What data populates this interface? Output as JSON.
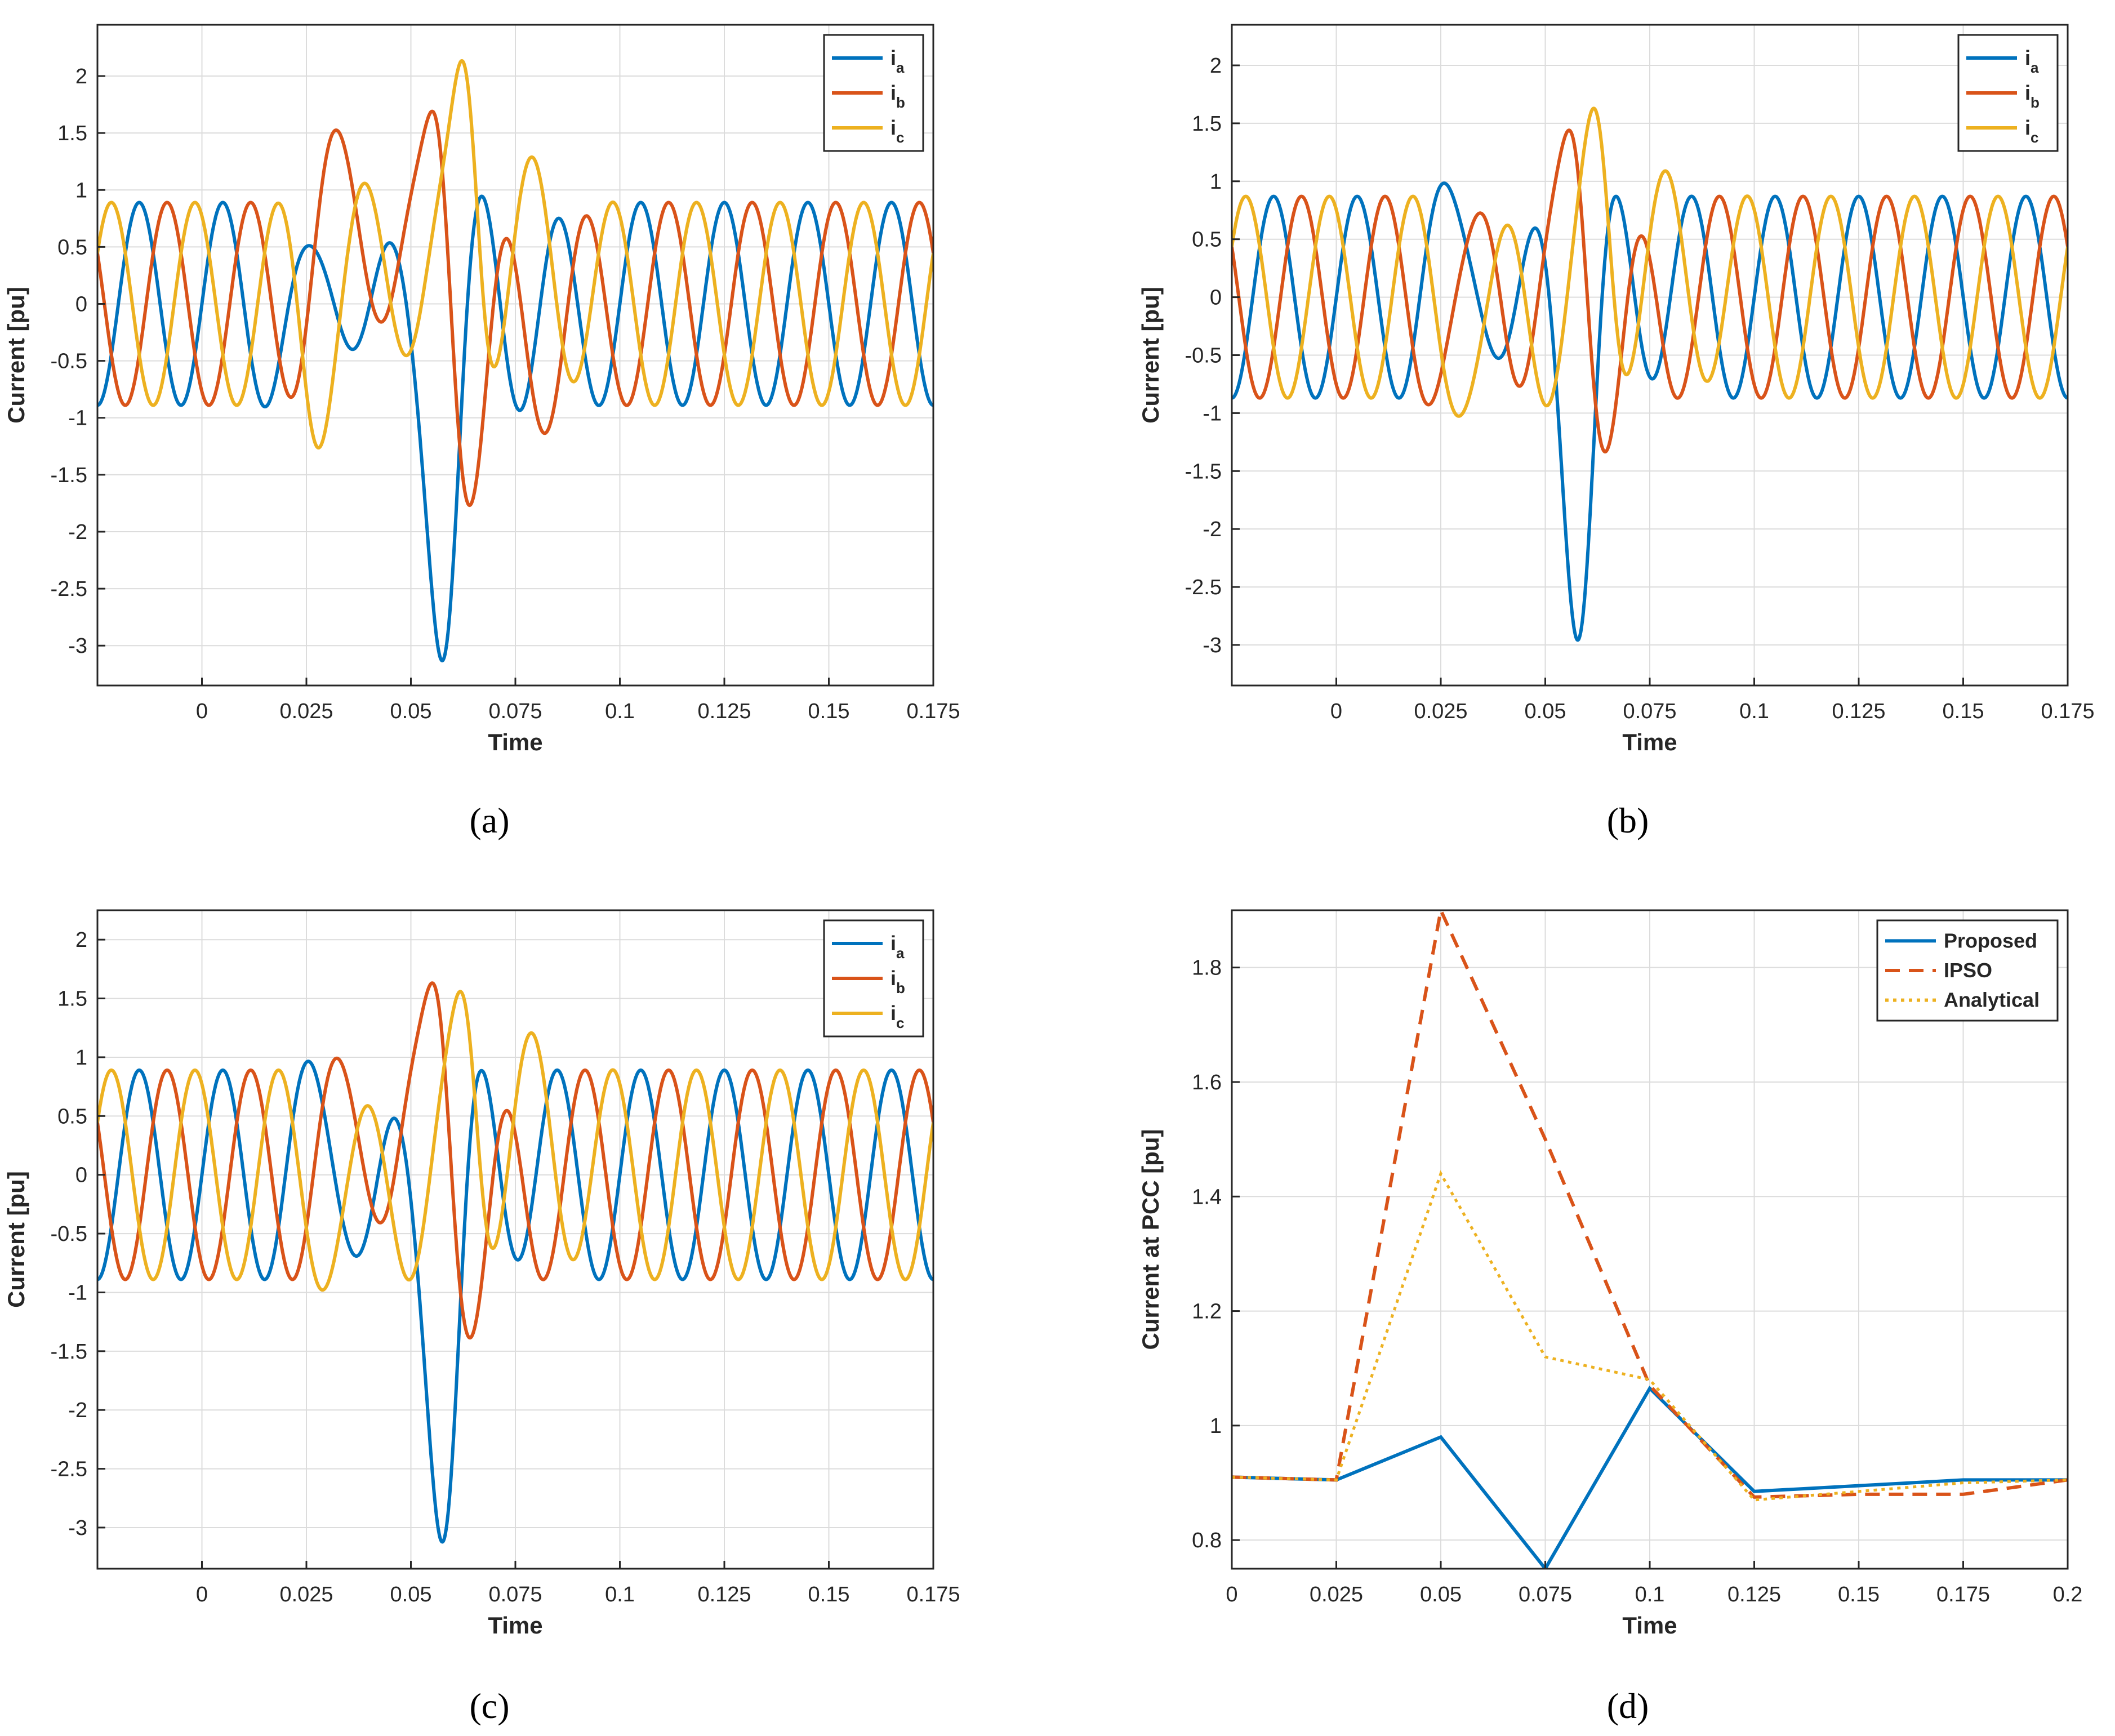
{
  "colors": {
    "ia": "#0072BD",
    "ib": "#D95319",
    "ic": "#EDB120",
    "grid": "#dcdcdc",
    "axis": "#262626"
  },
  "chart_data": [
    {
      "type": "line",
      "panel": "a",
      "caption": "(a)",
      "title": "",
      "xlabel": "Time",
      "ylabel": "Current [pu]",
      "xlim": [
        -0.025,
        0.175
      ],
      "ylim": [
        -3.35,
        2.45
      ],
      "xticks": [
        0,
        0.025,
        0.05,
        0.075,
        0.1,
        0.125,
        0.15,
        0.175
      ],
      "xtick_labels": [
        "0",
        "0.025",
        "0.05",
        "0.075",
        "0.1",
        "0.125",
        "0.15",
        "0.175"
      ],
      "yticks": [
        -3,
        -2.5,
        -2,
        -1.5,
        -1,
        -0.5,
        0,
        0.5,
        1,
        1.5,
        2
      ],
      "ytick_labels": [
        "-3",
        "-2.5",
        "-2",
        "-1.5",
        "-1",
        "-0.5",
        "0",
        "0.5",
        "1",
        "1.5",
        "2"
      ],
      "grid": true,
      "legend": "top-right",
      "series": [
        {
          "name": "ia",
          "label_main": "i",
          "label_sub": "a",
          "amp": 0.89,
          "phase": 0,
          "disturbances": [
            {
              "t": 0.026,
              "w": 0.004,
              "a": -0.6
            },
            {
              "t": 0.033,
              "w": 0.005,
              "a": 0.7
            },
            {
              "t": 0.044,
              "w": 0.005,
              "a": -0.4
            },
            {
              "t": 0.0585,
              "w": 0.0035,
              "a": -2.6
            },
            {
              "t": 0.07,
              "w": 0.004,
              "a": 0.5
            },
            {
              "t": 0.079,
              "w": 0.005,
              "a": -0.3
            }
          ]
        },
        {
          "name": "ib",
          "label_main": "i",
          "label_sub": "b",
          "amp": 0.89,
          "phase": -2.0944,
          "disturbances": [
            {
              "t": 0.029,
              "w": 0.004,
              "a": 0.4
            },
            {
              "t": 0.039,
              "w": 0.005,
              "a": 0.9
            },
            {
              "t": 0.057,
              "w": 0.003,
              "a": 1.6
            },
            {
              "t": 0.0655,
              "w": 0.004,
              "a": -1.3
            },
            {
              "t": 0.085,
              "w": 0.005,
              "a": -0.3
            }
          ]
        },
        {
          "name": "ic",
          "label_main": "i",
          "label_sub": "c",
          "amp": 0.89,
          "phase": 2.0944,
          "disturbances": [
            {
              "t": 0.027,
              "w": 0.003,
              "a": -0.4
            },
            {
              "t": 0.046,
              "w": 0.005,
              "a": 0.5
            },
            {
              "t": 0.0635,
              "w": 0.003,
              "a": 2.0
            },
            {
              "t": 0.082,
              "w": 0.005,
              "a": 0.5
            }
          ]
        }
      ]
    },
    {
      "type": "line",
      "panel": "b",
      "caption": "(b)",
      "title": "",
      "xlabel": "Time",
      "ylabel": "Current [pu]",
      "xlim": [
        -0.025,
        0.175
      ],
      "ylim": [
        -3.35,
        2.35
      ],
      "xticks": [
        0,
        0.025,
        0.05,
        0.075,
        0.1,
        0.125,
        0.15,
        0.175
      ],
      "xtick_labels": [
        "0",
        "0.025",
        "0.05",
        "0.075",
        "0.1",
        "0.125",
        "0.15",
        "0.175"
      ],
      "yticks": [
        -3,
        -2.5,
        -2,
        -1.5,
        -1,
        -0.5,
        0,
        0.5,
        1,
        1.5,
        2
      ],
      "ytick_labels": [
        "-3",
        "-2.5",
        "-2",
        "-1.5",
        "-1",
        "-0.5",
        "0",
        "0.5",
        "1",
        "1.5",
        "2"
      ],
      "grid": true,
      "legend": "top-right",
      "series": [
        {
          "name": "ia",
          "label_main": "i",
          "label_sub": "a",
          "amp": 0.87,
          "phase": 0,
          "disturbances": [
            {
              "t": 0.0335,
              "w": 0.004,
              "a": 0.9
            },
            {
              "t": 0.0425,
              "w": 0.004,
              "a": -0.9
            },
            {
              "t": 0.051,
              "w": 0.004,
              "a": 0.6
            },
            {
              "t": 0.0585,
              "w": 0.0035,
              "a": -2.6
            },
            {
              "t": 0.07,
              "w": 0.004,
              "a": 0.4
            }
          ]
        },
        {
          "name": "ib",
          "label_main": "i",
          "label_sub": "b",
          "amp": 0.87,
          "phase": -2.0944,
          "disturbances": [
            {
              "t": 0.0305,
              "w": 0.004,
              "a": -0.6
            },
            {
              "t": 0.038,
              "w": 0.004,
              "a": 0.8
            },
            {
              "t": 0.047,
              "w": 0.004,
              "a": -0.5
            },
            {
              "t": 0.0575,
              "w": 0.003,
              "a": 1.5
            },
            {
              "t": 0.0665,
              "w": 0.004,
              "a": -1.0
            }
          ]
        },
        {
          "name": "ic",
          "label_main": "i",
          "label_sub": "c",
          "amp": 0.87,
          "phase": 2.0944,
          "disturbances": [
            {
              "t": 0.036,
              "w": 0.004,
              "a": -0.8
            },
            {
              "t": 0.0445,
              "w": 0.004,
              "a": 0.6
            },
            {
              "t": 0.0535,
              "w": 0.004,
              "a": -0.6
            },
            {
              "t": 0.063,
              "w": 0.003,
              "a": 1.4
            },
            {
              "t": 0.0825,
              "w": 0.005,
              "a": 0.3
            }
          ]
        }
      ]
    },
    {
      "type": "line",
      "panel": "c",
      "caption": "(c)",
      "title": "",
      "xlabel": "Time",
      "ylabel": "Current [pu]",
      "xlim": [
        -0.025,
        0.175
      ],
      "ylim": [
        -3.35,
        2.25
      ],
      "xticks": [
        0,
        0.025,
        0.05,
        0.075,
        0.1,
        0.125,
        0.15,
        0.175
      ],
      "xtick_labels": [
        "0",
        "0.025",
        "0.05",
        "0.075",
        "0.1",
        "0.125",
        "0.15",
        "0.175"
      ],
      "yticks": [
        -3,
        -2.5,
        -2,
        -1.5,
        -1,
        -0.5,
        0,
        0.5,
        1,
        1.5,
        2
      ],
      "ytick_labels": [
        "-3",
        "-2.5",
        "-2",
        "-1.5",
        "-1",
        "-0.5",
        "0",
        "0.5",
        "1",
        "1.5",
        "2"
      ],
      "grid": true,
      "legend": "top-right",
      "series": [
        {
          "name": "ia",
          "label_main": "i",
          "label_sub": "a",
          "amp": 0.89,
          "phase": 0,
          "disturbances": [
            {
              "t": 0.033,
              "w": 0.004,
              "a": 0.5
            },
            {
              "t": 0.042,
              "w": 0.004,
              "a": -0.6
            },
            {
              "t": 0.0585,
              "w": 0.0035,
              "a": -2.6
            },
            {
              "t": 0.07,
              "w": 0.004,
              "a": 0.4
            }
          ]
        },
        {
          "name": "ib",
          "label_main": "i",
          "label_sub": "b",
          "amp": 0.89,
          "phase": -2.0944,
          "disturbances": [
            {
              "t": 0.0395,
              "w": 0.004,
              "a": 0.6
            },
            {
              "t": 0.057,
              "w": 0.003,
              "a": 1.5
            },
            {
              "t": 0.0665,
              "w": 0.004,
              "a": -1.0
            }
          ]
        },
        {
          "name": "ic",
          "label_main": "i",
          "label_sub": "c",
          "amp": 0.89,
          "phase": 2.0944,
          "disturbances": [
            {
              "t": 0.036,
              "w": 0.004,
              "a": -0.5
            },
            {
              "t": 0.0455,
              "w": 0.004,
              "a": 0.3
            },
            {
              "t": 0.0535,
              "w": 0.004,
              "a": -0.4
            },
            {
              "t": 0.0635,
              "w": 0.003,
              "a": 1.4
            },
            {
              "t": 0.082,
              "w": 0.005,
              "a": 0.4
            }
          ]
        }
      ]
    },
    {
      "type": "line",
      "panel": "d",
      "caption": "(d)",
      "title": "",
      "xlabel": "Time",
      "ylabel": "Current at PCC [pu]",
      "xlim": [
        0,
        0.2
      ],
      "ylim": [
        0.75,
        1.9
      ],
      "xticks": [
        0,
        0.025,
        0.05,
        0.075,
        0.1,
        0.125,
        0.15,
        0.175,
        0.2
      ],
      "xtick_labels": [
        "0",
        "0.025",
        "0.05",
        "0.075",
        "0.1",
        "0.125",
        "0.15",
        "0.175",
        "0.2"
      ],
      "yticks": [
        0.8,
        1,
        1.2,
        1.4,
        1.6,
        1.8
      ],
      "ytick_labels": [
        "0.8",
        "1",
        "1.2",
        "1.4",
        "1.6",
        "1.8"
      ],
      "grid": true,
      "legend": "top-right",
      "x": [
        0,
        0.025,
        0.05,
        0.075,
        0.1,
        0.125,
        0.15,
        0.175,
        0.2
      ],
      "series": [
        {
          "name": "Proposed",
          "style": "solid",
          "color": "#0072BD",
          "values": [
            0.91,
            0.905,
            0.98,
            0.75,
            1.065,
            0.885,
            0.895,
            0.905,
            0.905
          ]
        },
        {
          "name": "IPSO",
          "style": "dashed",
          "color": "#D95319",
          "values": [
            0.91,
            0.905,
            1.9,
            1.5,
            1.07,
            0.875,
            0.88,
            0.88,
            0.905
          ]
        },
        {
          "name": "Analytical",
          "style": "dotted",
          "color": "#EDB120",
          "values": [
            0.91,
            0.905,
            1.44,
            1.12,
            1.08,
            0.87,
            0.885,
            0.9,
            0.905
          ]
        }
      ]
    }
  ]
}
